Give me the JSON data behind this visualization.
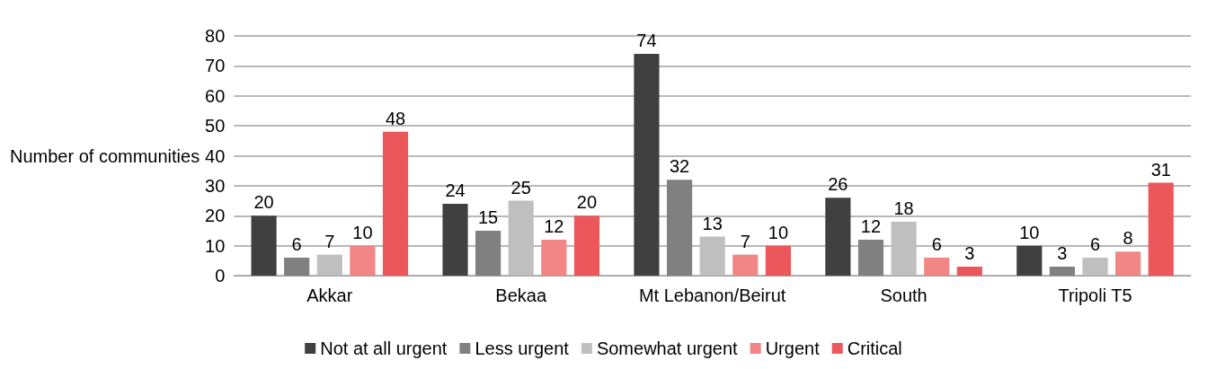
{
  "chart_data": {
    "type": "bar",
    "ylabel": "Number of communities",
    "categories": [
      "Akkar",
      "Bekaa",
      "Mt Lebanon/Beirut",
      "South",
      "Tripoli T5"
    ],
    "series": [
      {
        "name": "Not at all urgent",
        "color": "#404040",
        "values": [
          20,
          24,
          74,
          26,
          10
        ]
      },
      {
        "name": "Less urgent",
        "color": "#808080",
        "values": [
          6,
          15,
          32,
          12,
          3
        ]
      },
      {
        "name": "Somewhat urgent",
        "color": "#bfbfbf",
        "values": [
          7,
          25,
          13,
          18,
          6
        ]
      },
      {
        "name": "Urgent",
        "color": "#f28585",
        "values": [
          10,
          12,
          7,
          6,
          8
        ]
      },
      {
        "name": "Critical",
        "color": "#ec575b",
        "values": [
          48,
          20,
          10,
          3,
          31
        ]
      }
    ],
    "ylim": [
      0,
      80
    ],
    "yticks": [
      0,
      10,
      20,
      30,
      40,
      50,
      60,
      70,
      80
    ],
    "grid": "y",
    "legend": "bottom",
    "data_labels": true
  }
}
